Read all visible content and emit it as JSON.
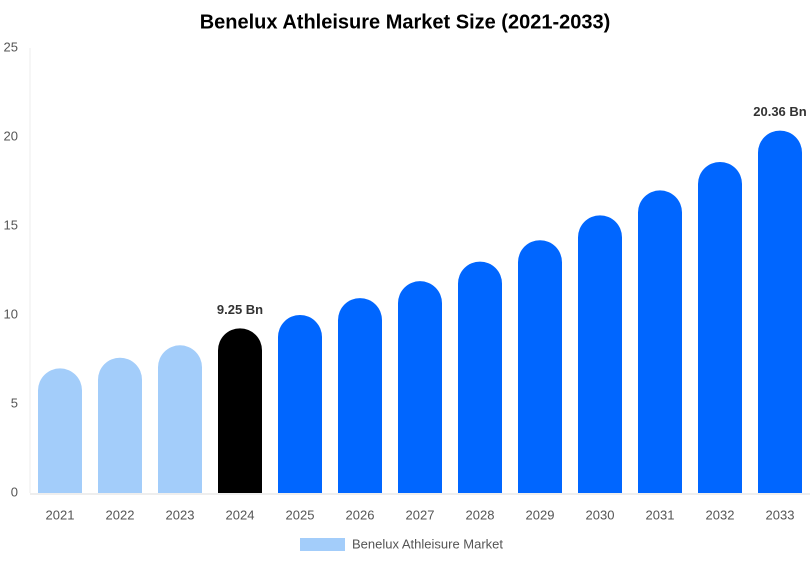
{
  "chart_data": {
    "type": "bar",
    "title": "Benelux Athleisure Market Size (2021-2033)",
    "categories": [
      "2021",
      "2022",
      "2023",
      "2024",
      "2025",
      "2026",
      "2027",
      "2028",
      "2029",
      "2030",
      "2031",
      "2032",
      "2033"
    ],
    "series": [
      {
        "name": "Benelux Athleisure Market",
        "color": "#a3cdfa",
        "values": [
          7.0,
          7.6,
          8.3,
          9.25,
          10.0,
          10.95,
          11.9,
          13.0,
          14.2,
          15.6,
          17.0,
          18.6,
          20.36
        ],
        "value_labels": [
          null,
          null,
          null,
          "9.25 Bn",
          null,
          null,
          null,
          null,
          null,
          null,
          null,
          null,
          "20.36 Bn"
        ],
        "colors": [
          "#a3cdfa",
          "#a3cdfa",
          "#a3cdfa",
          "#000000",
          "#0066ff",
          "#0066ff",
          "#0066ff",
          "#0066ff",
          "#0066ff",
          "#0066ff",
          "#0066ff",
          "#0066ff",
          "#0066ff"
        ]
      }
    ],
    "ylim": [
      0,
      25
    ],
    "yticks": [
      0,
      5,
      10,
      15,
      20,
      25
    ],
    "grid": false,
    "legend": "bottom"
  }
}
